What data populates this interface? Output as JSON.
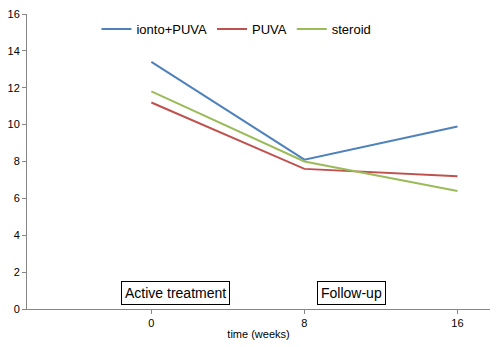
{
  "chart_data": {
    "type": "line",
    "x_label": "time (weeks)",
    "x": [
      0,
      8,
      16
    ],
    "series": [
      {
        "name": "ionto+PUVA",
        "color": "#4F81BD",
        "values": [
          13.4,
          8.1,
          9.9
        ]
      },
      {
        "name": "PUVA",
        "color": "#C0504D",
        "values": [
          11.2,
          7.6,
          7.2
        ]
      },
      {
        "name": "steroid",
        "color": "#9BBB59",
        "values": [
          11.8,
          8.0,
          6.4
        ]
      }
    ],
    "xlim": [
      -6.5,
      17.7
    ],
    "xticks": [
      0,
      8,
      16
    ],
    "ylim": [
      0,
      16
    ],
    "yticks": [
      0,
      2,
      4,
      6,
      8,
      10,
      12,
      14,
      16
    ],
    "annotations": [
      "Active treatment",
      "Follow-up"
    ],
    "grid": false,
    "legend": "top"
  }
}
